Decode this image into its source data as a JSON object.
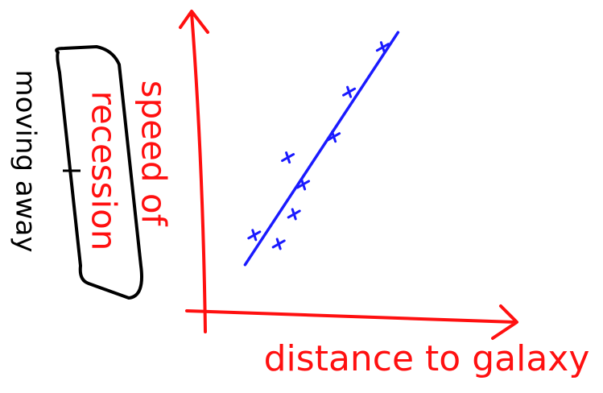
{
  "chart_data": {
    "type": "scatter",
    "x_label": "distance to galaxy",
    "y_label": [
      "speed of",
      "recession"
    ],
    "annotation": "moving away",
    "xlim": [
      0,
      10
    ],
    "ylim": [
      0,
      10
    ],
    "axis_color": "#ff1010",
    "points": {
      "color": "#1a1aff",
      "x": [
        1.6,
        2.4,
        2.9,
        3.2,
        2.7,
        4.2,
        4.7,
        5.8
      ],
      "y": [
        2.6,
        2.3,
        3.3,
        4.3,
        5.2,
        5.9,
        7.4,
        8.9
      ]
    },
    "fit_line": {
      "color": "#1a1aff",
      "x": [
        1.3,
        6.3
      ],
      "y": [
        1.6,
        9.4
      ]
    }
  }
}
